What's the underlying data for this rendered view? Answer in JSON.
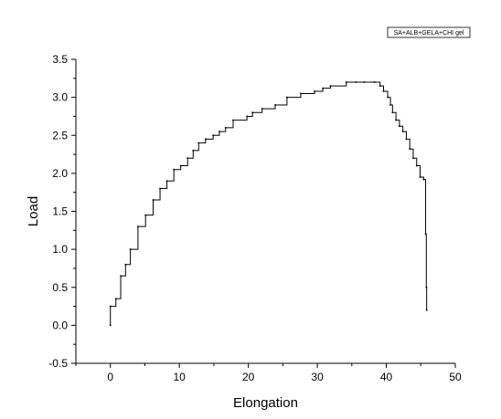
{
  "chart_data": {
    "type": "line",
    "title": "",
    "xlabel": "Elongation",
    "ylabel": "Load",
    "xlim": [
      -5,
      50
    ],
    "ylim": [
      -0.5,
      3.5
    ],
    "xticks": [
      0,
      10,
      20,
      30,
      40,
      50
    ],
    "yticks": [
      -0.5,
      0.0,
      0.5,
      1.0,
      1.5,
      2.0,
      2.5,
      3.0,
      3.5
    ],
    "xtick_labels": [
      "0",
      "10",
      "20",
      "30",
      "40",
      "50"
    ],
    "ytick_labels": [
      "-0.5",
      "0.0",
      "0.5",
      "1.0",
      "1.5",
      "2.0",
      "2.5",
      "3.0",
      "3.5"
    ],
    "grid": false,
    "legend_position": "top-right",
    "series": [
      {
        "name": "SA+ALB+GELA+CHI gel",
        "color": "#000000",
        "x": [
          0,
          0,
          0.8,
          1.5,
          2.2,
          2.9,
          4.0,
          5.1,
          6.2,
          7.2,
          8.2,
          9.2,
          10.2,
          11.2,
          12.0,
          12.8,
          13.8,
          14.9,
          15.8,
          16.7,
          17.8,
          19.8,
          20.6,
          22.0,
          23.9,
          25.6,
          27.6,
          29.6,
          30.8,
          31.9,
          34.2,
          35.6,
          36.8,
          38.3,
          39.1,
          39.6,
          40.2,
          40.6,
          40.9,
          41.4,
          41.9,
          42.4,
          42.9,
          43.4,
          43.9,
          44.4,
          44.9,
          45.4,
          45.7,
          45.8,
          45.85
        ],
        "y": [
          0,
          0.25,
          0.35,
          0.65,
          0.8,
          1.0,
          1.3,
          1.45,
          1.65,
          1.8,
          1.9,
          2.05,
          2.1,
          2.2,
          2.3,
          2.4,
          2.45,
          2.5,
          2.55,
          2.6,
          2.7,
          2.75,
          2.8,
          2.85,
          2.9,
          3.0,
          3.05,
          3.08,
          3.12,
          3.15,
          3.2,
          3.2,
          3.2,
          3.2,
          3.15,
          3.08,
          3.0,
          2.9,
          2.8,
          2.7,
          2.62,
          2.55,
          2.45,
          2.32,
          2.2,
          2.1,
          1.95,
          1.92,
          1.2,
          0.5,
          0.2
        ]
      }
    ],
    "legend_text": "SA+ALB+GELA+CHI gel"
  }
}
